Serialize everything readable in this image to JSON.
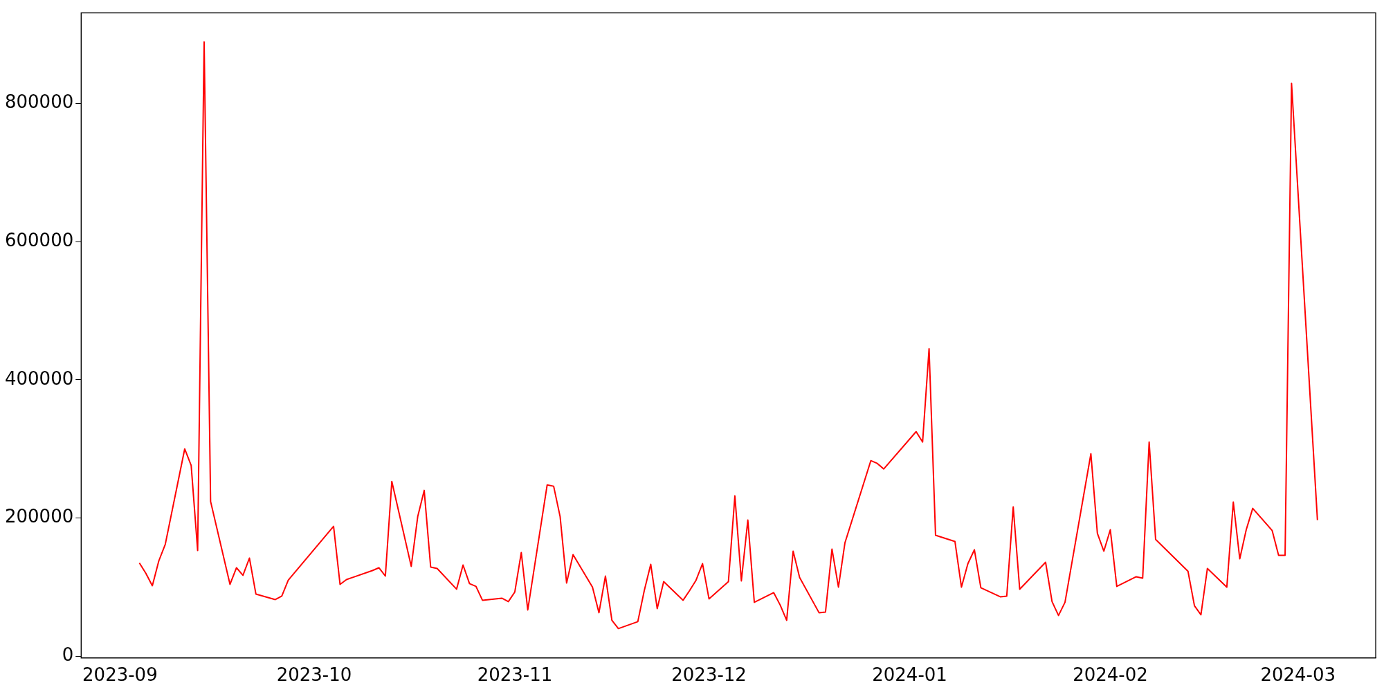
{
  "chart_data": {
    "type": "line",
    "color": "#ff0000",
    "grid": false,
    "legend": false,
    "x": [
      "2023-09-04",
      "2023-09-05",
      "2023-09-06",
      "2023-09-07",
      "2023-09-08",
      "2023-09-11",
      "2023-09-12",
      "2023-09-13",
      "2023-09-14",
      "2023-09-15",
      "2023-09-18",
      "2023-09-19",
      "2023-09-20",
      "2023-09-21",
      "2023-09-22",
      "2023-09-25",
      "2023-09-26",
      "2023-09-27",
      "2023-10-04",
      "2023-10-05",
      "2023-10-06",
      "2023-10-10",
      "2023-10-11",
      "2023-10-12",
      "2023-10-13",
      "2023-10-16",
      "2023-10-17",
      "2023-10-18",
      "2023-10-19",
      "2023-10-20",
      "2023-10-23",
      "2023-10-24",
      "2023-10-25",
      "2023-10-26",
      "2023-10-27",
      "2023-10-30",
      "2023-10-31",
      "2023-11-01",
      "2023-11-02",
      "2023-11-03",
      "2023-11-06",
      "2023-11-07",
      "2023-11-08",
      "2023-11-09",
      "2023-11-10",
      "2023-11-13",
      "2023-11-14",
      "2023-11-15",
      "2023-11-16",
      "2023-11-17",
      "2023-11-20",
      "2023-11-21",
      "2023-11-22",
      "2023-11-23",
      "2023-11-24",
      "2023-11-27",
      "2023-11-28",
      "2023-11-29",
      "2023-11-30",
      "2023-12-01",
      "2023-12-04",
      "2023-12-05",
      "2023-12-06",
      "2023-12-07",
      "2023-12-08",
      "2023-12-11",
      "2023-12-12",
      "2023-12-13",
      "2023-12-14",
      "2023-12-15",
      "2023-12-18",
      "2023-12-19",
      "2023-12-20",
      "2023-12-21",
      "2023-12-22",
      "2023-12-26",
      "2023-12-27",
      "2023-12-28",
      "2024-01-02",
      "2024-01-03",
      "2024-01-04",
      "2024-01-05",
      "2024-01-08",
      "2024-01-09",
      "2024-01-10",
      "2024-01-11",
      "2024-01-12",
      "2024-01-15",
      "2024-01-16",
      "2024-01-17",
      "2024-01-18",
      "2024-01-22",
      "2024-01-23",
      "2024-01-24",
      "2024-01-25",
      "2024-01-29",
      "2024-01-30",
      "2024-01-31",
      "2024-02-01",
      "2024-02-02",
      "2024-02-05",
      "2024-02-06",
      "2024-02-07",
      "2024-02-08",
      "2024-02-13",
      "2024-02-14",
      "2024-02-15",
      "2024-02-16",
      "2024-02-19",
      "2024-02-20",
      "2024-02-21",
      "2024-02-22",
      "2024-02-23",
      "2024-02-26",
      "2024-02-27",
      "2024-02-28",
      "2024-02-29",
      "2024-03-04"
    ],
    "values": [
      135000,
      120000,
      102000,
      138000,
      162000,
      300000,
      276000,
      153000,
      889000,
      224000,
      104000,
      128000,
      117000,
      142000,
      90000,
      82000,
      87000,
      110000,
      188000,
      104000,
      111000,
      124000,
      128000,
      116000,
      253000,
      130000,
      202000,
      240000,
      129000,
      127000,
      97000,
      132000,
      105000,
      101000,
      81000,
      84000,
      79000,
      93000,
      150000,
      67000,
      248000,
      246000,
      202000,
      106000,
      147000,
      100000,
      63000,
      116000,
      52000,
      40000,
      50000,
      95000,
      133000,
      69000,
      108000,
      81000,
      95000,
      110000,
      134000,
      83000,
      108000,
      232000,
      109000,
      197000,
      78000,
      92000,
      74000,
      52000,
      152000,
      114000,
      63000,
      64000,
      155000,
      100000,
      164000,
      283000,
      279000,
      271000,
      325000,
      310000,
      445000,
      175000,
      166000,
      100000,
      134000,
      154000,
      99000,
      86000,
      87000,
      216000,
      97000,
      136000,
      79000,
      59000,
      78000,
      293000,
      178000,
      152000,
      183000,
      101000,
      115000,
      113000,
      310000,
      169000,
      123000,
      73000,
      60000,
      127000,
      100000,
      223000,
      141000,
      183000,
      214000,
      182000,
      146000,
      146000,
      829000,
      197000
    ],
    "xlim": [
      "2023-08-26",
      "2024-03-13"
    ],
    "xticks": [
      {
        "value": "2023-09-01",
        "label": "2023-09"
      },
      {
        "value": "2023-10-01",
        "label": "2023-10"
      },
      {
        "value": "2023-11-01",
        "label": "2023-11"
      },
      {
        "value": "2023-12-01",
        "label": "2023-12"
      },
      {
        "value": "2024-01-01",
        "label": "2024-01"
      },
      {
        "value": "2024-02-01",
        "label": "2024-02"
      },
      {
        "value": "2024-03-01",
        "label": "2024-03"
      }
    ],
    "ylim": [
      -2500,
      931000
    ],
    "yticks": [
      0,
      200000,
      400000,
      600000,
      800000
    ]
  }
}
